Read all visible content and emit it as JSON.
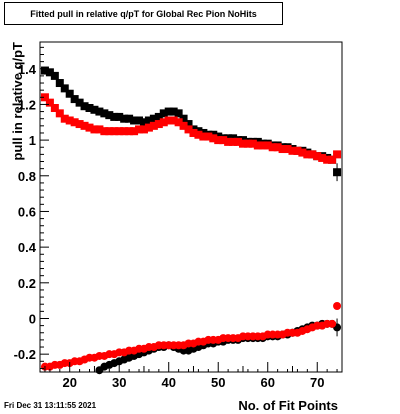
{
  "title": "Fitted pull in relative q/pT for Global Rec Pion NoHits",
  "footer_timestamp": "Fri Dec 31 13:11:55 2021",
  "chart_data": {
    "type": "scatter",
    "title": "Fitted pull in relative q/pT for Global Rec Pion NoHits",
    "xlabel": "No. of Fit Points",
    "ylabel": "pull in relative q/pT",
    "xlim": [
      14,
      75
    ],
    "ylim": [
      -0.3,
      1.55
    ],
    "xticks": [
      20,
      30,
      40,
      50,
      60,
      70
    ],
    "yticks": [
      -0.2,
      0,
      0.2,
      0.4,
      0.6,
      0.8,
      1,
      1.2,
      1.4
    ],
    "grid": false,
    "series": [
      {
        "marker": "square",
        "color": "#000000",
        "x": [
          15,
          16,
          17,
          18,
          19,
          20,
          21,
          22,
          23,
          24,
          25,
          26,
          27,
          28,
          29,
          30,
          31,
          32,
          33,
          34,
          35,
          36,
          37,
          38,
          39,
          40,
          41,
          42,
          43,
          44,
          45,
          46,
          47,
          48,
          49,
          50,
          51,
          52,
          53,
          54,
          55,
          56,
          57,
          58,
          59,
          60,
          61,
          62,
          63,
          64,
          65,
          66,
          67,
          68,
          69,
          70,
          71,
          72,
          73,
          74
        ],
        "y": [
          1.39,
          1.38,
          1.36,
          1.32,
          1.29,
          1.26,
          1.23,
          1.21,
          1.19,
          1.18,
          1.17,
          1.16,
          1.15,
          1.14,
          1.13,
          1.13,
          1.12,
          1.12,
          1.11,
          1.11,
          1.1,
          1.11,
          1.12,
          1.13,
          1.15,
          1.16,
          1.16,
          1.15,
          1.12,
          1.09,
          1.06,
          1.05,
          1.04,
          1.03,
          1.03,
          1.02,
          1.01,
          1.01,
          1.01,
          1.0,
          1.0,
          0.99,
          0.99,
          0.99,
          0.98,
          0.98,
          0.97,
          0.97,
          0.96,
          0.96,
          0.95,
          0.94,
          0.94,
          0.93,
          0.92,
          0.91,
          0.91,
          0.9,
          0.89,
          0.82
        ]
      },
      {
        "marker": "square",
        "color": "#ff0000",
        "x": [
          15,
          16,
          17,
          18,
          19,
          20,
          21,
          22,
          23,
          24,
          25,
          26,
          27,
          28,
          29,
          30,
          31,
          32,
          33,
          34,
          35,
          36,
          37,
          38,
          39,
          40,
          41,
          42,
          43,
          44,
          45,
          46,
          47,
          48,
          49,
          50,
          51,
          52,
          53,
          54,
          55,
          56,
          57,
          58,
          59,
          60,
          61,
          62,
          63,
          64,
          65,
          66,
          67,
          68,
          69,
          70,
          71,
          72,
          73,
          74
        ],
        "y": [
          1.24,
          1.21,
          1.18,
          1.15,
          1.12,
          1.11,
          1.1,
          1.09,
          1.08,
          1.07,
          1.06,
          1.06,
          1.05,
          1.05,
          1.05,
          1.05,
          1.05,
          1.05,
          1.05,
          1.06,
          1.06,
          1.07,
          1.08,
          1.09,
          1.1,
          1.11,
          1.11,
          1.1,
          1.08,
          1.06,
          1.04,
          1.03,
          1.02,
          1.02,
          1.01,
          1.0,
          1.0,
          0.99,
          0.99,
          0.99,
          0.98,
          0.98,
          0.98,
          0.97,
          0.97,
          0.97,
          0.96,
          0.96,
          0.95,
          0.95,
          0.94,
          0.94,
          0.93,
          0.92,
          0.92,
          0.91,
          0.9,
          0.89,
          0.89,
          0.92
        ]
      },
      {
        "marker": "circle",
        "color": "#000000",
        "x": [
          26,
          27,
          28,
          29,
          30,
          31,
          32,
          33,
          34,
          35,
          36,
          37,
          38,
          39,
          40,
          41,
          42,
          43,
          44,
          45,
          46,
          47,
          48,
          49,
          50,
          51,
          52,
          53,
          54,
          55,
          56,
          57,
          58,
          59,
          60,
          61,
          62,
          63,
          64,
          65,
          66,
          67,
          68,
          69,
          70,
          71,
          72,
          73,
          74
        ],
        "y": [
          -0.29,
          -0.27,
          -0.26,
          -0.25,
          -0.24,
          -0.23,
          -0.22,
          -0.21,
          -0.2,
          -0.19,
          -0.18,
          -0.17,
          -0.16,
          -0.16,
          -0.15,
          -0.16,
          -0.17,
          -0.18,
          -0.18,
          -0.17,
          -0.16,
          -0.15,
          -0.14,
          -0.14,
          -0.13,
          -0.13,
          -0.12,
          -0.12,
          -0.12,
          -0.11,
          -0.11,
          -0.11,
          -0.11,
          -0.11,
          -0.1,
          -0.1,
          -0.1,
          -0.09,
          -0.09,
          -0.08,
          -0.07,
          -0.06,
          -0.05,
          -0.04,
          -0.04,
          -0.03,
          -0.03,
          -0.03,
          -0.05
        ]
      },
      {
        "marker": "circle",
        "color": "#ff0000",
        "x": [
          15,
          16,
          17,
          18,
          19,
          20,
          21,
          22,
          23,
          24,
          25,
          26,
          27,
          28,
          29,
          30,
          31,
          32,
          33,
          34,
          35,
          36,
          37,
          38,
          39,
          40,
          41,
          42,
          43,
          44,
          45,
          46,
          47,
          48,
          49,
          50,
          51,
          52,
          53,
          54,
          55,
          56,
          57,
          58,
          59,
          60,
          61,
          62,
          63,
          64,
          65,
          66,
          67,
          68,
          69,
          70,
          71,
          72,
          73,
          74
        ],
        "y": [
          -0.27,
          -0.27,
          -0.26,
          -0.26,
          -0.25,
          -0.25,
          -0.24,
          -0.24,
          -0.23,
          -0.22,
          -0.22,
          -0.21,
          -0.21,
          -0.2,
          -0.2,
          -0.19,
          -0.19,
          -0.18,
          -0.18,
          -0.17,
          -0.17,
          -0.16,
          -0.16,
          -0.15,
          -0.15,
          -0.15,
          -0.15,
          -0.15,
          -0.15,
          -0.14,
          -0.14,
          -0.13,
          -0.13,
          -0.12,
          -0.12,
          -0.12,
          -0.11,
          -0.11,
          -0.11,
          -0.11,
          -0.1,
          -0.1,
          -0.1,
          -0.1,
          -0.1,
          -0.09,
          -0.09,
          -0.09,
          -0.09,
          -0.08,
          -0.08,
          -0.08,
          -0.07,
          -0.06,
          -0.05,
          -0.04,
          -0.04,
          -0.03,
          -0.03,
          0.07
        ]
      }
    ]
  }
}
